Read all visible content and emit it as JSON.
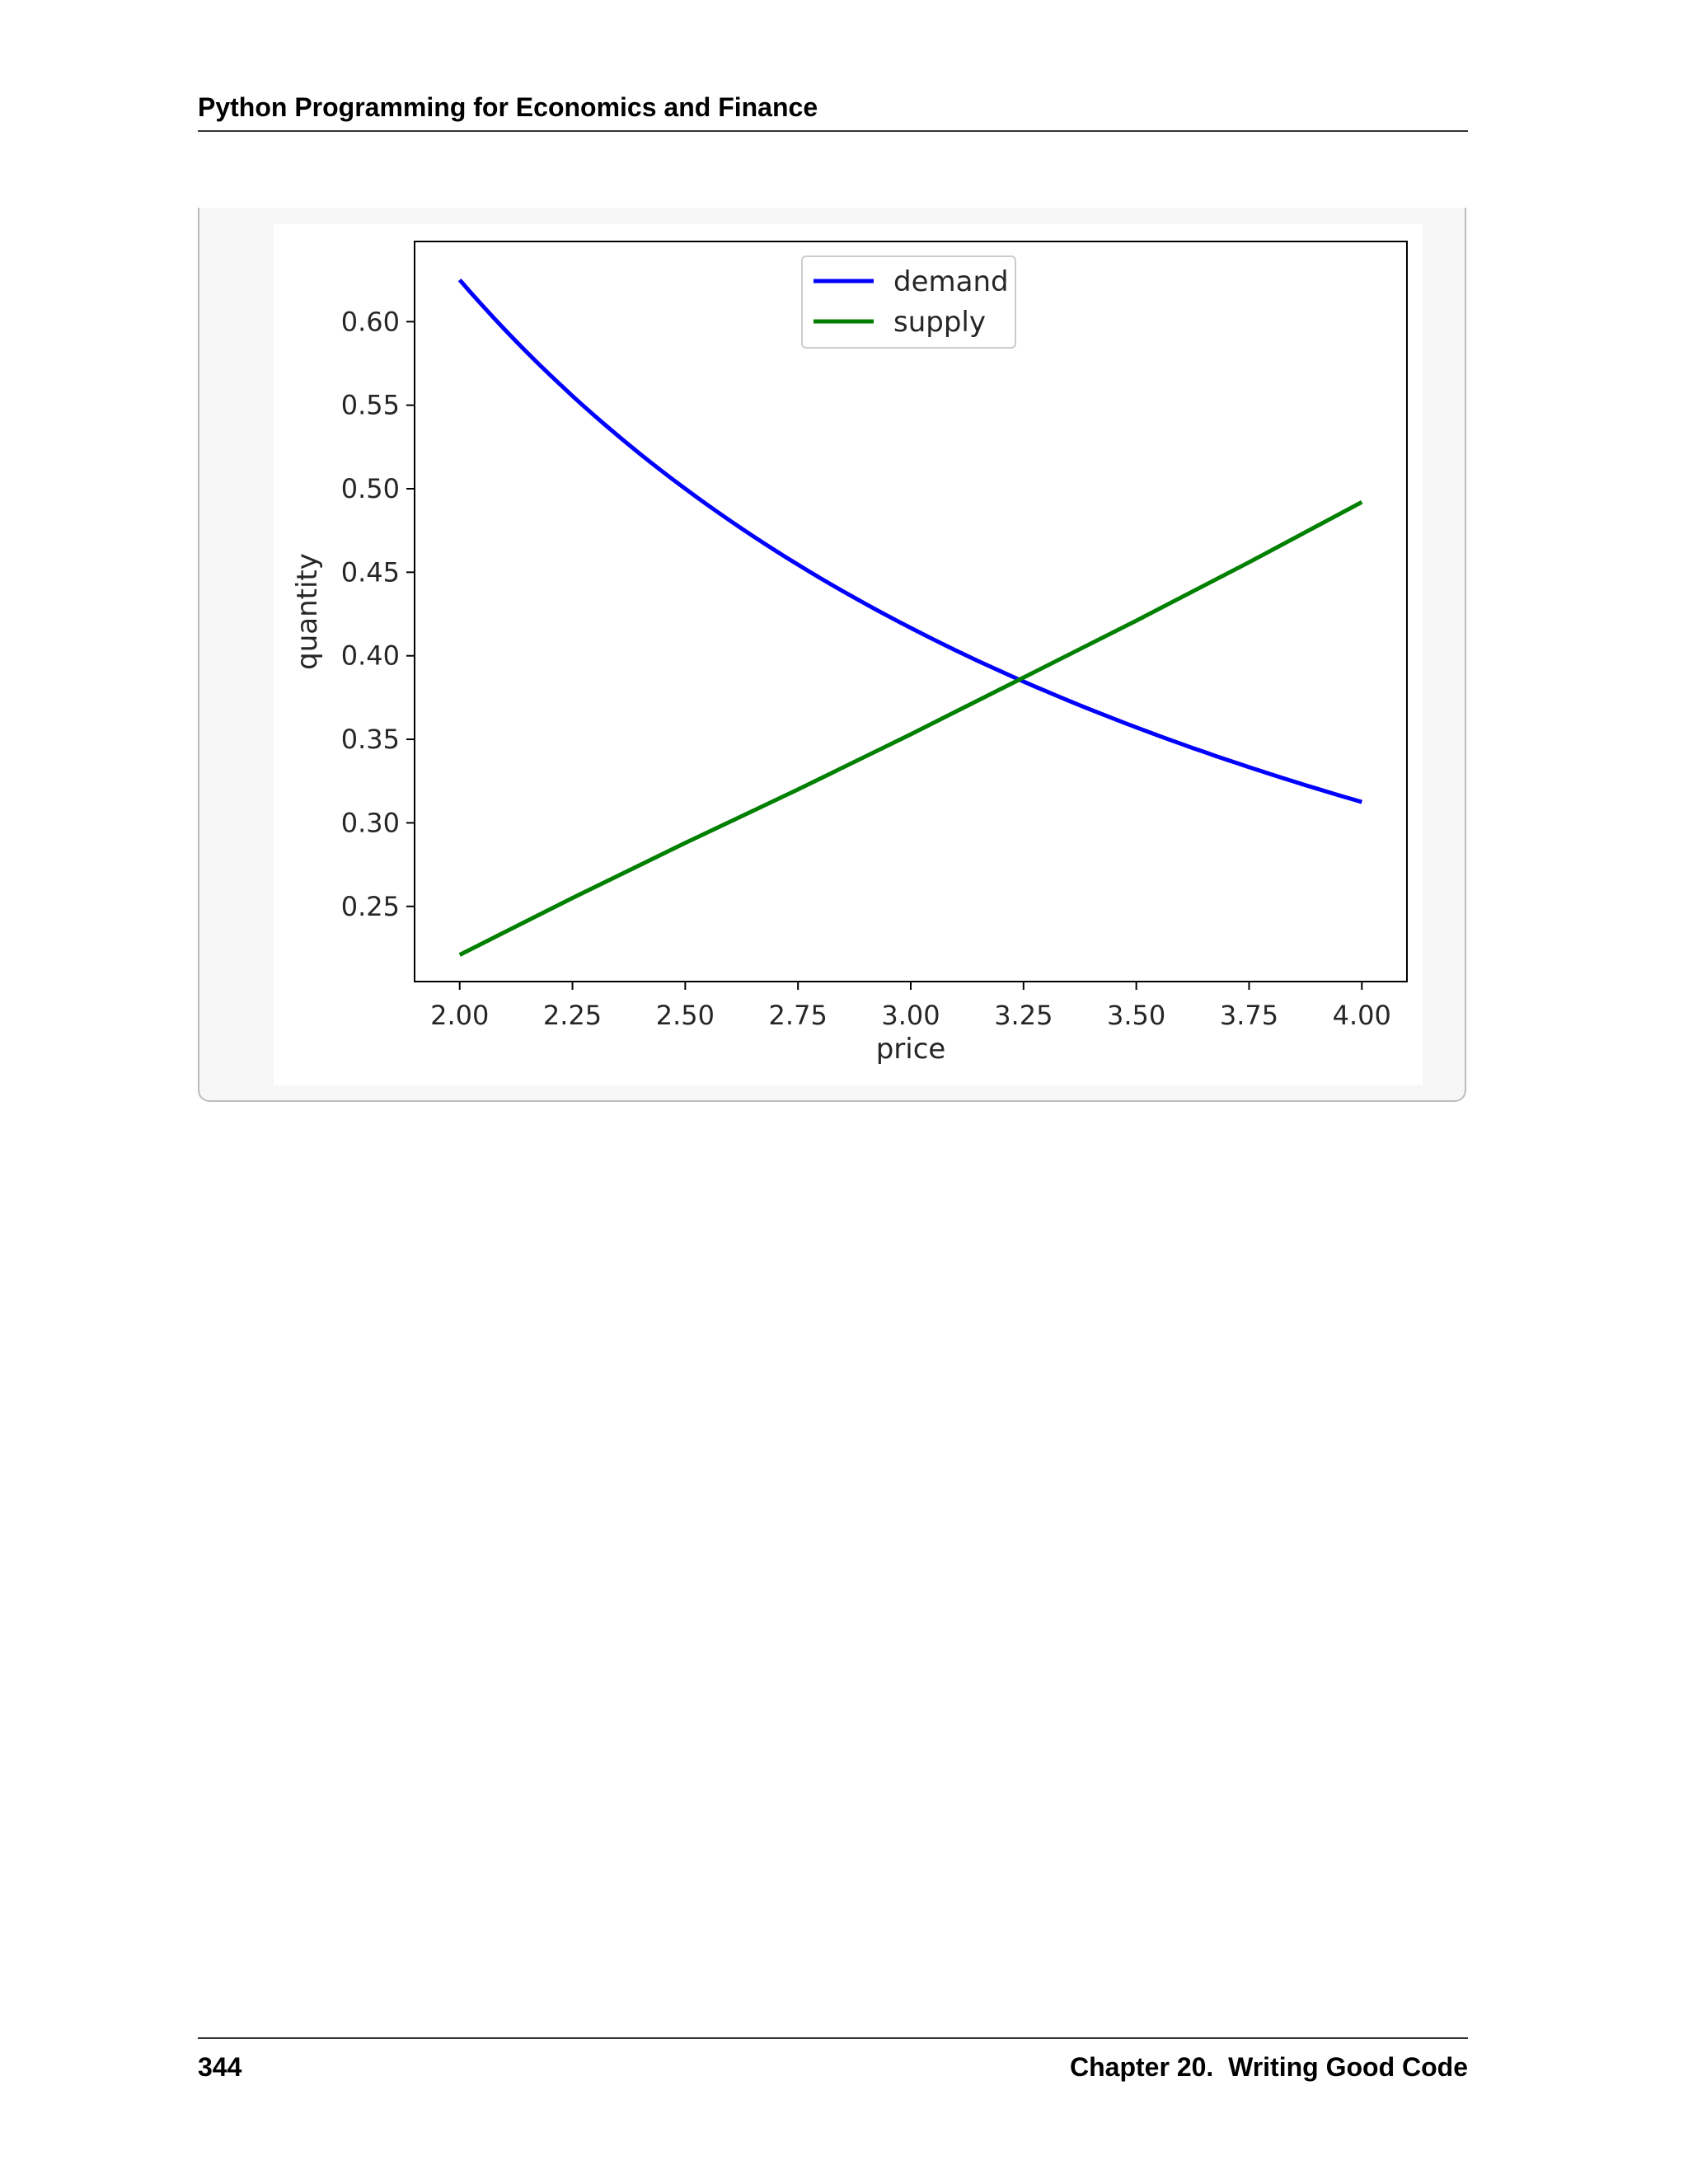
{
  "header": {
    "title": "Python Programming for Economics and Finance"
  },
  "footer": {
    "page_number": "344",
    "chapter": "Chapter 20.  Writing Good Code"
  },
  "chart_data": {
    "type": "line",
    "xlabel": "price",
    "ylabel": "quantity",
    "xlim": [
      1.9,
      4.1
    ],
    "ylim": [
      0.205,
      0.648
    ],
    "xticks": [
      "2.00",
      "2.25",
      "2.50",
      "2.75",
      "3.00",
      "3.25",
      "3.50",
      "3.75",
      "4.00"
    ],
    "yticks": [
      "0.25",
      "0.30",
      "0.35",
      "0.40",
      "0.45",
      "0.50",
      "0.55",
      "0.60"
    ],
    "grid": false,
    "legend_position": "upper center",
    "x": [
      2.0,
      2.25,
      2.5,
      2.75,
      3.0,
      3.25,
      3.5,
      3.75,
      4.0
    ],
    "series": [
      {
        "name": "demand",
        "color": "#0000ff",
        "values": [
          0.625,
          0.556,
          0.5,
          0.455,
          0.417,
          0.385,
          0.357,
          0.333,
          0.313
        ]
      },
      {
        "name": "supply",
        "color": "#008000",
        "values": [
          0.221,
          0.255,
          0.288,
          0.32,
          0.353,
          0.387,
          0.421,
          0.456,
          0.492
        ]
      }
    ]
  }
}
